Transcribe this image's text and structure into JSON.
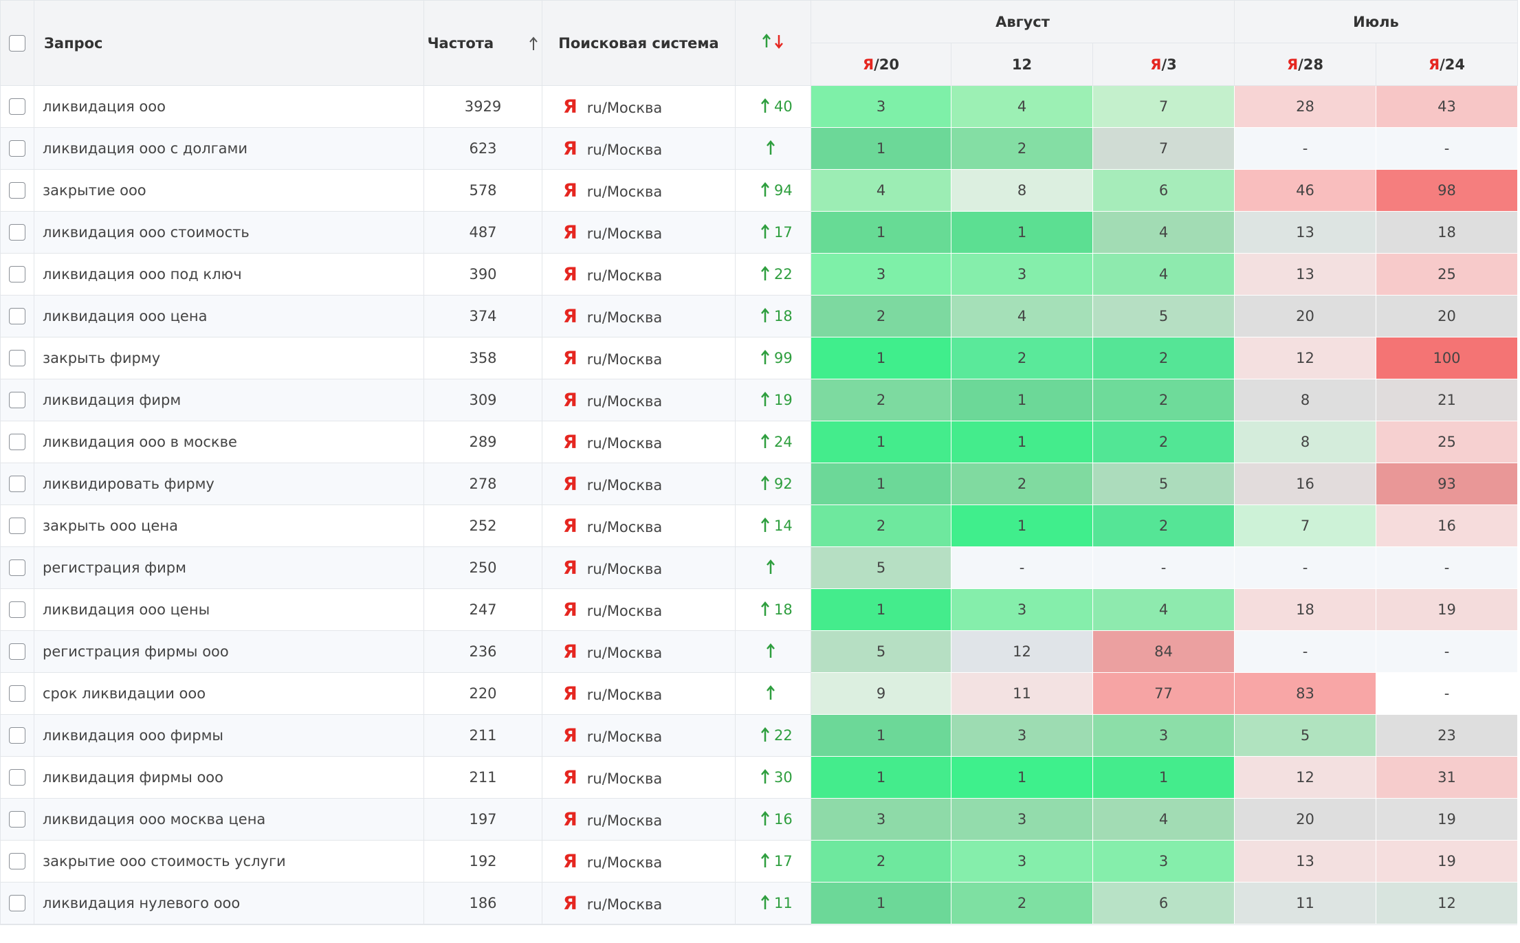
{
  "header": {
    "query": "Запрос",
    "frequency": "Частота",
    "engine": "Поисковая система",
    "groups": [
      {
        "label": "Август",
        "dates": [
          {
            "mark": "Я",
            "label": "/20"
          },
          {
            "label": "12"
          },
          {
            "mark": "Я",
            "label": "/3"
          }
        ]
      },
      {
        "label": "Июль",
        "dates": [
          {
            "mark": "Я",
            "label": "/28"
          },
          {
            "mark": "Я",
            "label": "/24"
          }
        ]
      }
    ]
  },
  "rows": [
    {
      "query": "ликвидация ооо",
      "frequency": 3929,
      "engine_mark": "Я",
      "engine": "ru/Москва",
      "change": 40,
      "positions": [
        3,
        4,
        7,
        28,
        43
      ],
      "colors": [
        "#7ef0a8",
        "#9cf0b4",
        "#c4f0cc",
        "#f7d4d4",
        "#f7c6c6"
      ]
    },
    {
      "query": "ликвидация ооо с долгами",
      "frequency": 623,
      "engine_mark": "Я",
      "engine": "ru/Москва",
      "positions": [
        1,
        2,
        7,
        "-",
        "-"
      ],
      "colors": [
        "#6cd898",
        "#84dea4",
        "#d0dcd4",
        "#f4f7fa",
        "#f4f7fa"
      ]
    },
    {
      "query": "закрытие ооо",
      "frequency": 578,
      "engine_mark": "Я",
      "engine": "ru/Москва",
      "change": 94,
      "positions": [
        4,
        8,
        6,
        46,
        98
      ],
      "colors": [
        "#9cedb4",
        "#dcefe0",
        "#a6ecba",
        "#f9bebe",
        "#f57e7e"
      ]
    },
    {
      "query": "ликвидация ооо стоимость",
      "frequency": 487,
      "engine_mark": "Я",
      "engine": "ru/Москва",
      "change": 17,
      "positions": [
        1,
        1,
        4,
        13,
        18
      ],
      "colors": [
        "#67db95",
        "#5cdf92",
        "#a2dcb4",
        "#dde4e2",
        "#dedede"
      ]
    },
    {
      "query": "ликвидация ооо под ключ",
      "frequency": 390,
      "engine_mark": "Я",
      "engine": "ru/Москва",
      "change": 22,
      "positions": [
        3,
        3,
        4,
        13,
        25
      ],
      "colors": [
        "#7ef0a8",
        "#85eeab",
        "#8eeaae",
        "#f3e0e0",
        "#f7caca"
      ]
    },
    {
      "query": "ликвидация ооо цена",
      "frequency": 374,
      "engine_mark": "Я",
      "engine": "ru/Москва",
      "change": 18,
      "positions": [
        2,
        4,
        5,
        20,
        20
      ],
      "colors": [
        "#7dd9a0",
        "#a5e0b8",
        "#b6dfc3",
        "#dedede",
        "#dedede"
      ]
    },
    {
      "query": "закрыть фирму",
      "frequency": 358,
      "engine_mark": "Я",
      "engine": "ru/Москва",
      "change": 99,
      "positions": [
        1,
        2,
        2,
        12,
        100
      ],
      "colors": [
        "#40ee8c",
        "#5ae99a",
        "#55e596",
        "#f4e0e0",
        "#f47474"
      ]
    },
    {
      "query": "ликвидация фирм",
      "frequency": 309,
      "engine_mark": "Я",
      "engine": "ru/Москва",
      "change": 19,
      "positions": [
        2,
        1,
        2,
        8,
        21
      ],
      "colors": [
        "#7ddaa0",
        "#6cd898",
        "#6edb9a",
        "#dedede",
        "#e0dcdc"
      ]
    },
    {
      "query": "ликвидация ооо в москве",
      "frequency": 289,
      "engine_mark": "Я",
      "engine": "ru/Москва",
      "change": 24,
      "positions": [
        1,
        1,
        2,
        8,
        25
      ],
      "colors": [
        "#44ec8c",
        "#44ec8c",
        "#52e695",
        "#d4ecdb",
        "#f6d0d0"
      ]
    },
    {
      "query": "ликвидировать фирму",
      "frequency": 278,
      "engine_mark": "Я",
      "engine": "ru/Москва",
      "change": 92,
      "positions": [
        1,
        2,
        5,
        16,
        93
      ],
      "colors": [
        "#6cd898",
        "#80daa0",
        "#acdcbc",
        "#e2dcdc",
        "#e99797"
      ]
    },
    {
      "query": "закрыть ооо цена",
      "frequency": 252,
      "engine_mark": "Я",
      "engine": "ru/Москва",
      "change": 14,
      "positions": [
        2,
        1,
        2,
        7,
        16
      ],
      "colors": [
        "#6ee89e",
        "#40ee8c",
        "#55e596",
        "#cdf2d7",
        "#f6dcdc"
      ]
    },
    {
      "query": "регистрация фирм",
      "frequency": 250,
      "engine_mark": "Я",
      "engine": "ru/Москва",
      "positions": [
        5,
        "-",
        "-",
        "-",
        "-"
      ],
      "colors": [
        "#b6dfc3",
        "#f4f7fa",
        "#f4f7fa",
        "#f4f7fa",
        "#f4f7fa"
      ]
    },
    {
      "query": "ликвидация ооо цены",
      "frequency": 247,
      "engine_mark": "Я",
      "engine": "ru/Москва",
      "change": 18,
      "positions": [
        1,
        3,
        4,
        18,
        19
      ],
      "colors": [
        "#44ec8c",
        "#85eeab",
        "#8eeaae",
        "#f5dddd",
        "#f4dcdc"
      ]
    },
    {
      "query": "регистрация фирмы ооо",
      "frequency": 236,
      "engine_mark": "Я",
      "engine": "ru/Москва",
      "positions": [
        5,
        12,
        84,
        "-",
        "-"
      ],
      "colors": [
        "#b6dfc3",
        "#e0e4e8",
        "#eba0a0",
        "#f4f7fa",
        "#f4f7fa"
      ]
    },
    {
      "query": "срок ликвидации ооо",
      "frequency": 220,
      "engine_mark": "Я",
      "engine": "ru/Москва",
      "positions": [
        9,
        11,
        77,
        83,
        "-"
      ],
      "colors": [
        "#dcefe0",
        "#f3e2e2",
        "#f6a4a4",
        "#f8a6a6",
        "#ffffff"
      ]
    },
    {
      "query": "ликвидация ооо фирмы",
      "frequency": 211,
      "engine_mark": "Я",
      "engine": "ru/Москва",
      "change": 22,
      "positions": [
        1,
        3,
        3,
        5,
        23
      ],
      "colors": [
        "#6cd898",
        "#9ddcb2",
        "#8cdea8",
        "#b0e3bf",
        "#dedede"
      ]
    },
    {
      "query": "ликвидация фирмы ооо",
      "frequency": 211,
      "engine_mark": "Я",
      "engine": "ru/Москва",
      "change": 30,
      "positions": [
        1,
        1,
        1,
        12,
        31
      ],
      "colors": [
        "#44ec8c",
        "#3ef08c",
        "#44ec8c",
        "#f3e0e0",
        "#f6cccc"
      ]
    },
    {
      "query": "ликвидация ооо москва цена",
      "frequency": 197,
      "engine_mark": "Я",
      "engine": "ru/Москва",
      "change": 16,
      "positions": [
        3,
        3,
        4,
        20,
        19
      ],
      "colors": [
        "#8edaa8",
        "#93dcac",
        "#a2dcb4",
        "#dedede",
        "#e0e0e0"
      ]
    },
    {
      "query": "закрытие ооо стоимость услуги",
      "frequency": 192,
      "engine_mark": "Я",
      "engine": "ru/Москва",
      "change": 17,
      "positions": [
        2,
        3,
        3,
        13,
        19
      ],
      "colors": [
        "#6ee89e",
        "#85eeab",
        "#85eeab",
        "#f3e0e0",
        "#f5dede"
      ]
    },
    {
      "query": "ликвидация нулевого ооо",
      "frequency": 186,
      "engine_mark": "Я",
      "engine": "ru/Москва",
      "change": 11,
      "positions": [
        1,
        2,
        6,
        11,
        12
      ],
      "colors": [
        "#6cd898",
        "#7ee0a2",
        "#b8e2c6",
        "#dde4e2",
        "#d8e4de"
      ]
    }
  ]
}
